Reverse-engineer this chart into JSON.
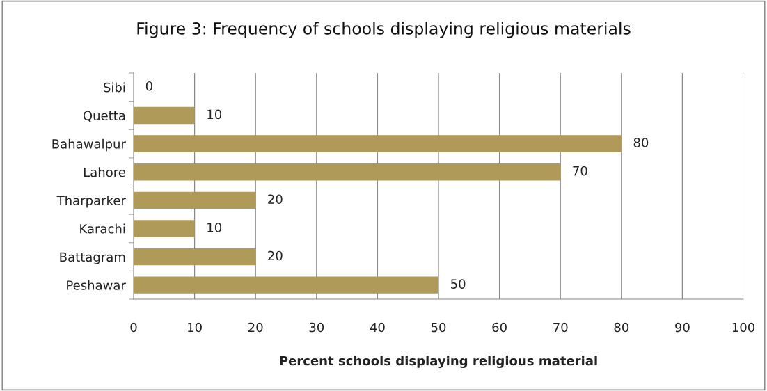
{
  "chart_data": {
    "type": "bar",
    "orientation": "horizontal",
    "title": "Figure 3: Frequency of schools displaying religious materials",
    "xlabel": "Percent schools displaying religious material",
    "categories": [
      "Sibi",
      "Quetta",
      "Bahawalpur",
      "Lahore",
      "Tharparker",
      "Karachi",
      "Battagram",
      "Peshawar"
    ],
    "values": [
      0,
      10,
      80,
      70,
      20,
      10,
      20,
      50
    ],
    "color": "#b09a5a",
    "xlim": [
      0,
      100
    ],
    "xticks": [
      0,
      10,
      20,
      30,
      40,
      50,
      60,
      70,
      80,
      90,
      100
    ],
    "grid": "x",
    "data_labels": true
  }
}
